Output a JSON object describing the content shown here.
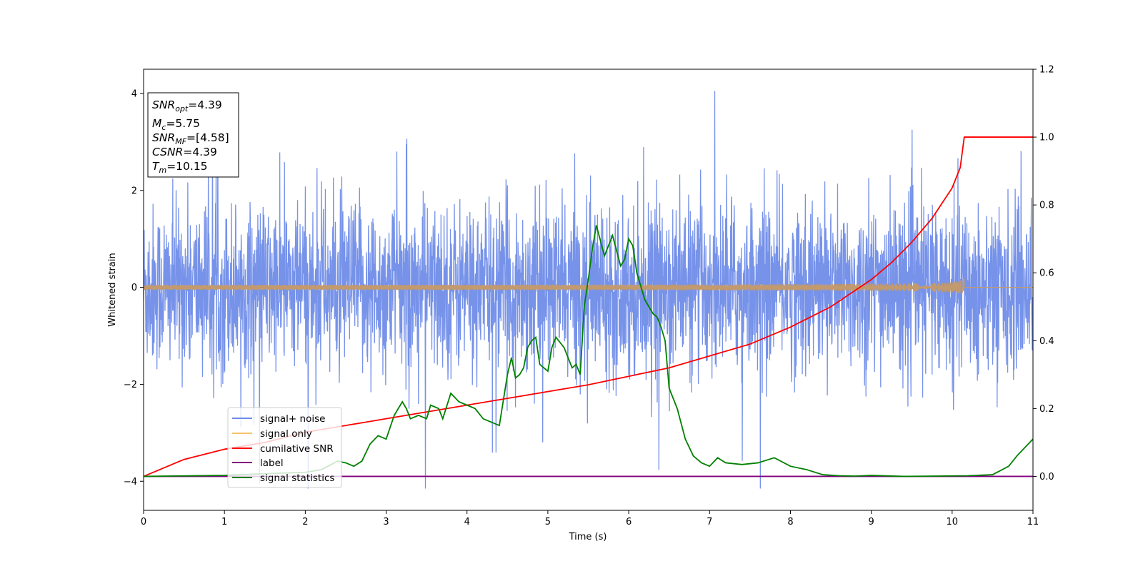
{
  "chart_data": {
    "type": "line",
    "xlabel": "Time (s)",
    "ylabel": "Whitened strain",
    "xlim": [
      0,
      11
    ],
    "ylim": [
      -4.6,
      4.5
    ],
    "y2lim": [
      -0.1,
      1.2
    ],
    "x_ticks": [
      0,
      1,
      2,
      3,
      4,
      5,
      6,
      7,
      8,
      9,
      10,
      11
    ],
    "y_ticks": [
      -4,
      -2,
      0,
      2,
      4
    ],
    "y2_ticks": [
      "0.0",
      "0.2",
      "0.4",
      "0.6",
      "0.8",
      "1.0",
      "1.2"
    ],
    "grid": false,
    "legend_position": "lower-left",
    "series": [
      {
        "name": "signal+ noise",
        "color": "#6f8ce8",
        "axis": "left",
        "note": "noise band approx. ±1.5 with spikes to ±4"
      },
      {
        "name": "signal only",
        "color": "#f5c46a",
        "axis": "left",
        "merger_time": 10.15,
        "peak_amplitude": 0.45
      },
      {
        "name": "cumilative SNR",
        "color": "#ff0000",
        "axis": "right",
        "x": [
          0,
          0.5,
          1,
          1.5,
          2,
          2.5,
          3,
          3.5,
          4,
          4.5,
          5,
          5.5,
          6,
          6.5,
          7,
          7.5,
          8,
          8.5,
          9,
          9.25,
          9.5,
          9.75,
          10,
          10.1,
          10.15,
          11
        ],
        "y": [
          0.0,
          0.05,
          0.08,
          0.1,
          0.13,
          0.15,
          0.17,
          0.19,
          0.21,
          0.23,
          0.25,
          0.27,
          0.295,
          0.32,
          0.355,
          0.39,
          0.44,
          0.5,
          0.58,
          0.63,
          0.69,
          0.76,
          0.85,
          0.91,
          1.0,
          1.0
        ]
      },
      {
        "name": "label",
        "color": "#800080",
        "axis": "right",
        "x": [
          0,
          11
        ],
        "y": [
          0,
          0
        ]
      },
      {
        "name": "signal statistics",
        "color": "#008000",
        "axis": "right",
        "x": [
          0,
          1,
          1.5,
          2,
          2.2,
          2.4,
          2.5,
          2.6,
          2.7,
          2.8,
          2.9,
          3.0,
          3.1,
          3.15,
          3.2,
          3.25,
          3.3,
          3.4,
          3.5,
          3.55,
          3.65,
          3.7,
          3.8,
          3.9,
          4.0,
          4.1,
          4.2,
          4.3,
          4.4,
          4.5,
          4.55,
          4.6,
          4.65,
          4.7,
          4.75,
          4.8,
          4.85,
          4.9,
          5.0,
          5.05,
          5.1,
          5.2,
          5.3,
          5.35,
          5.4,
          5.45,
          5.5,
          5.55,
          5.6,
          5.7,
          5.8,
          5.9,
          5.95,
          6.0,
          6.05,
          6.1,
          6.2,
          6.3,
          6.35,
          6.4,
          6.45,
          6.5,
          6.55,
          6.6,
          6.7,
          6.8,
          6.9,
          7.0,
          7.1,
          7.2,
          7.4,
          7.6,
          7.8,
          8.0,
          8.2,
          8.4,
          8.6,
          8.8,
          9.0,
          9.4,
          9.8,
          10.2,
          10.5,
          10.7,
          10.8,
          10.9,
          11.0
        ],
        "y": [
          0.0,
          0.003,
          0.008,
          0.012,
          0.02,
          0.045,
          0.04,
          0.03,
          0.045,
          0.095,
          0.12,
          0.11,
          0.18,
          0.2,
          0.22,
          0.2,
          0.17,
          0.18,
          0.17,
          0.21,
          0.2,
          0.17,
          0.245,
          0.22,
          0.21,
          0.2,
          0.17,
          0.16,
          0.15,
          0.3,
          0.35,
          0.29,
          0.3,
          0.32,
          0.38,
          0.4,
          0.41,
          0.33,
          0.31,
          0.38,
          0.41,
          0.38,
          0.32,
          0.33,
          0.3,
          0.5,
          0.58,
          0.67,
          0.74,
          0.65,
          0.71,
          0.62,
          0.64,
          0.7,
          0.68,
          0.6,
          0.52,
          0.48,
          0.47,
          0.44,
          0.4,
          0.26,
          0.23,
          0.2,
          0.11,
          0.06,
          0.04,
          0.03,
          0.055,
          0.04,
          0.035,
          0.04,
          0.055,
          0.03,
          0.02,
          0.005,
          0.002,
          0.001,
          0.003,
          0.0,
          0.001,
          0.002,
          0.005,
          0.03,
          0.06,
          0.085,
          0.11
        ]
      }
    ],
    "annotation": {
      "snr_opt": "4.39",
      "mc": "5.75",
      "snr_mf": "[4.58]",
      "csnr": "4.39",
      "tm": "10.15"
    }
  },
  "legend": {
    "items": [
      "signal+ noise",
      "signal only",
      "cumilative SNR",
      "label",
      "signal statistics"
    ]
  },
  "info_box": {
    "snr_opt_label": "SNR",
    "snr_opt_sub": "opt",
    "snr_opt_value": "=4.39",
    "mc_label": "M",
    "mc_sub": "c",
    "mc_value": "=5.75",
    "snr_mf_label": "SNR",
    "snr_mf_sub": "MF",
    "snr_mf_value": "=[4.58]",
    "csnr_label": "CSNR",
    "csnr_value": "=4.39",
    "tm_label": "T",
    "tm_sub": "m",
    "tm_value": "=10.15"
  }
}
